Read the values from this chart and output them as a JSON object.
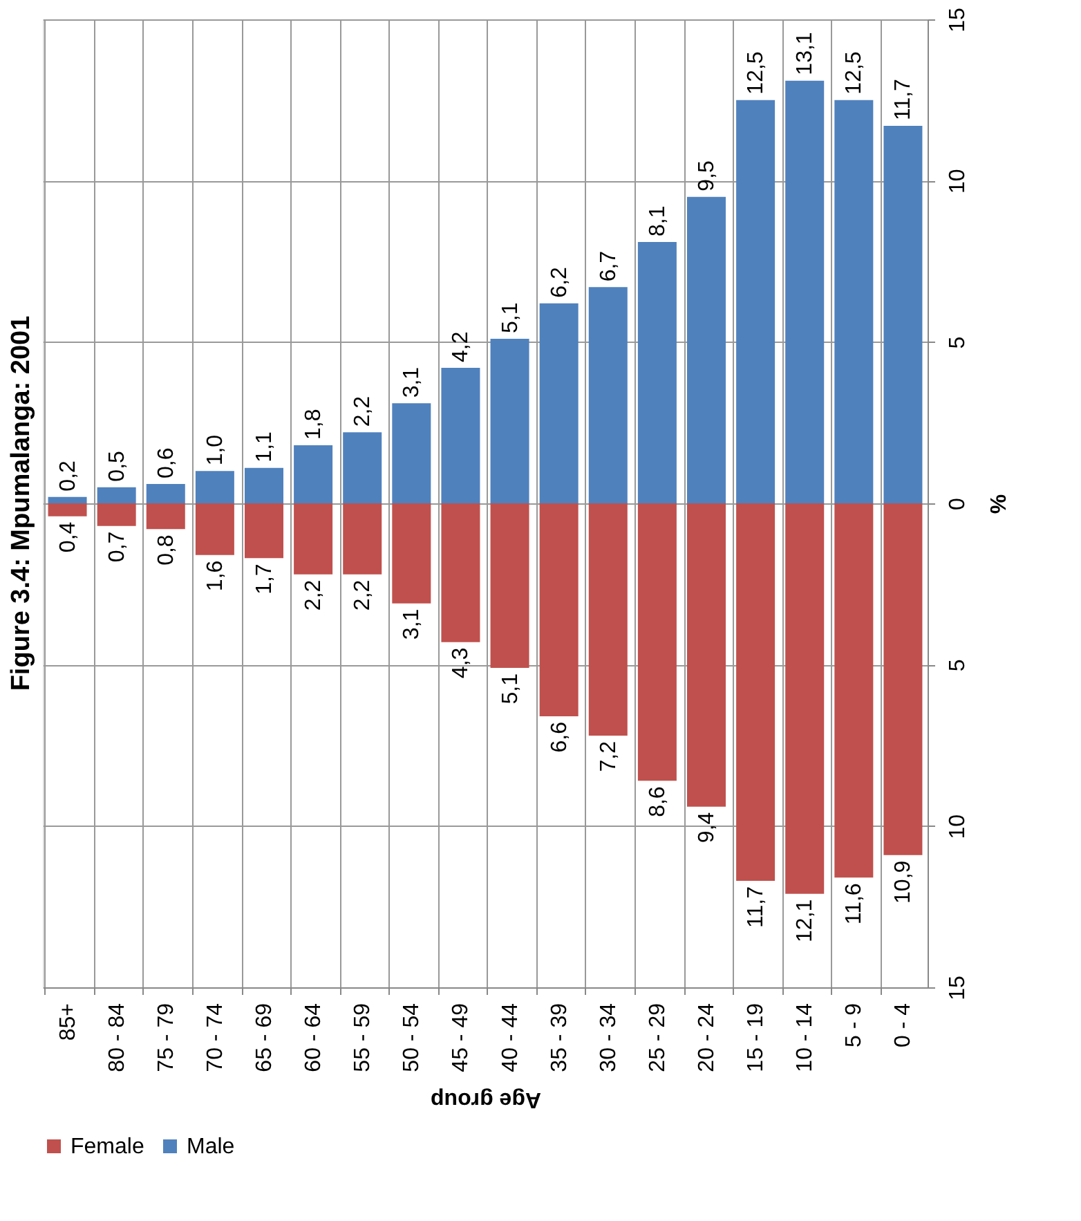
{
  "chart_data": {
    "type": "bar",
    "title": "Figure 3.4: Mpumalanga: 2001",
    "xlabel": "Age group",
    "ylabel": "%",
    "categories": [
      "85+",
      "80 - 84",
      "75 - 79",
      "70 - 74",
      "65 - 69",
      "60 - 64",
      "55 - 59",
      "50 - 54",
      "45 - 49",
      "40 - 44",
      "35 - 39",
      "30 - 34",
      "25 - 29",
      "20 - 24",
      "15 - 19",
      "10 - 14",
      "5 - 9",
      "0 - 4"
    ],
    "series": [
      {
        "name": "Female",
        "color": "#c0504d",
        "values": [
          0.4,
          0.7,
          0.8,
          1.6,
          1.7,
          2.2,
          2.2,
          3.1,
          4.3,
          5.1,
          6.6,
          7.2,
          8.6,
          9.4,
          11.7,
          12.1,
          11.6,
          10.9
        ],
        "base": [
          -0.4,
          -0.7,
          -0.8,
          -1.6,
          -1.7,
          -2.2,
          -2.2,
          -3.1,
          -4.3,
          -5.1,
          -6.6,
          -7.2,
          -8.6,
          -9.4,
          -11.7,
          -12.1,
          -11.6,
          -10.9
        ],
        "value_labels": [
          "0,4",
          "0,7",
          "0,8",
          "1,6",
          "1,7",
          "2,2",
          "2,2",
          "3,1",
          "4,3",
          "5,1",
          "6,6",
          "7,2",
          "8,6",
          "9,4",
          "11,7",
          "12,1",
          "11,6",
          "10,9"
        ]
      },
      {
        "name": "Male",
        "color": "#4f81bd",
        "values": [
          0.2,
          0.5,
          0.6,
          1.0,
          1.1,
          1.8,
          2.2,
          3.1,
          4.2,
          5.1,
          6.2,
          6.7,
          8.1,
          9.5,
          12.5,
          13.1,
          12.5,
          11.7
        ],
        "value_labels": [
          "0,2",
          "0,5",
          "0,6",
          "1,0",
          "1,1",
          "1,8",
          "2,2",
          "3,1",
          "4,2",
          "5,1",
          "6,2",
          "6,7",
          "8,1",
          "9,5",
          "12,5",
          "13,1",
          "12,5",
          "11,7"
        ]
      }
    ],
    "ylim": [
      -15,
      15
    ],
    "yticks": [
      {
        "value": -15,
        "label": "15"
      },
      {
        "value": -10,
        "label": "10"
      },
      {
        "value": -5,
        "label": "5"
      },
      0,
      5,
      10,
      15
    ],
    "grid": true,
    "legend": "bottom"
  }
}
